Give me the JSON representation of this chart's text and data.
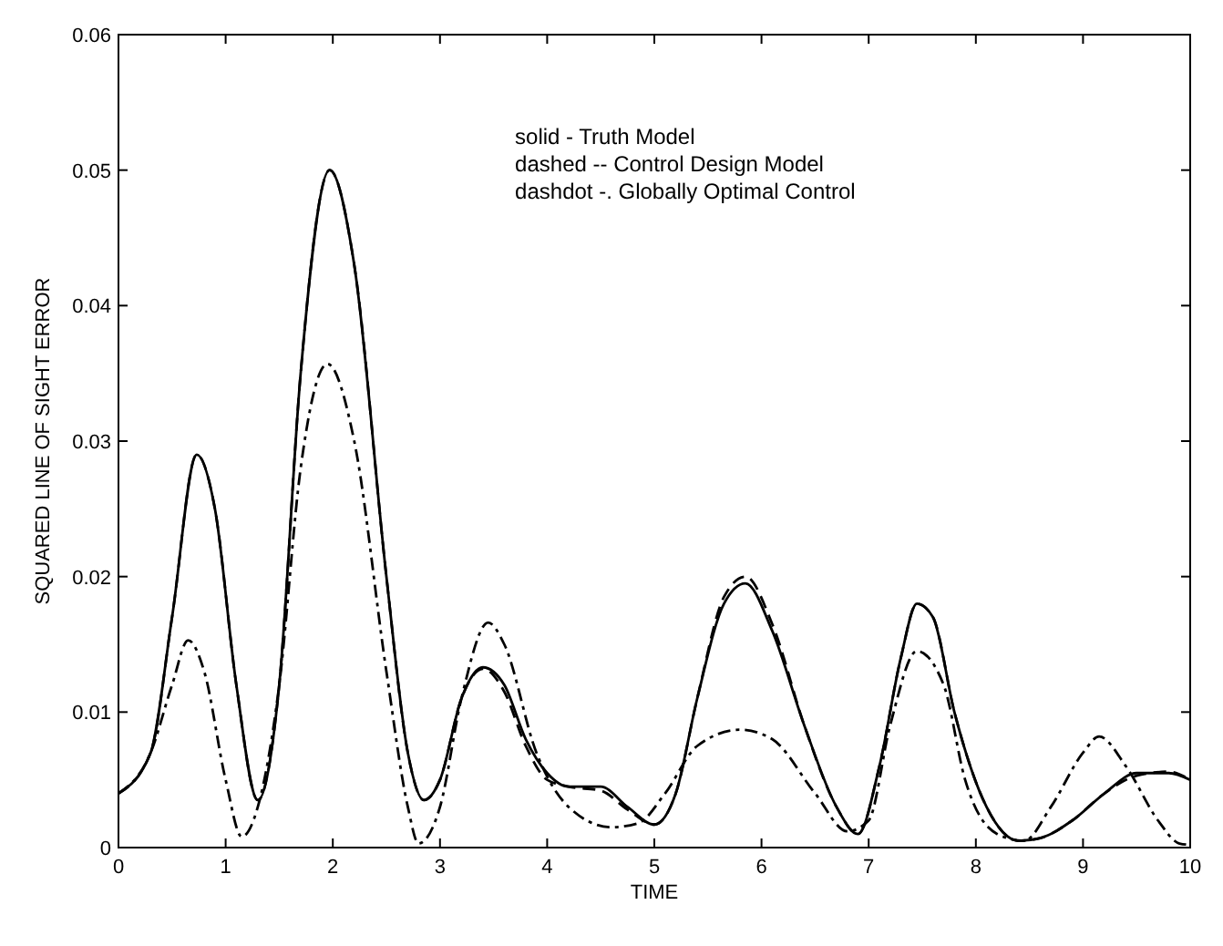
{
  "chart_data": {
    "type": "line",
    "xlabel": "TIME",
    "ylabel": "SQUARED LINE OF SIGHT ERROR",
    "xlim": [
      0,
      10
    ],
    "ylim": [
      0,
      0.06
    ],
    "xticks": [
      0,
      1,
      2,
      3,
      4,
      5,
      6,
      7,
      8,
      9,
      10
    ],
    "yticks": [
      0,
      0.01,
      0.02,
      0.03,
      0.04,
      0.05,
      0.06
    ],
    "grid": false,
    "marker": "none",
    "annotations": [
      "solid - Truth Model",
      "dashed -- Control Design Model",
      "dashdot -. Globally Optimal Control"
    ],
    "series": [
      {
        "color": "#000000",
        "line_style": "solid",
        "x": [
          0,
          0.3,
          0.5,
          0.73,
          0.9,
          1.1,
          1.3,
          1.5,
          1.7,
          1.97,
          2.2,
          2.5,
          2.7,
          2.85,
          3.0,
          3.2,
          3.4,
          3.6,
          3.8,
          4.0,
          4.2,
          4.5,
          4.75,
          5.0,
          5.2,
          5.4,
          5.65,
          5.85,
          6.1,
          6.4,
          6.7,
          6.9,
          7.1,
          7.3,
          7.45,
          7.6,
          7.8,
          8.1,
          8.4,
          8.6,
          8.9,
          9.2,
          9.5,
          9.8,
          10
        ],
        "values": [
          0.004,
          0.007,
          0.017,
          0.029,
          0.025,
          0.012,
          0.0035,
          0.012,
          0.035,
          0.05,
          0.043,
          0.02,
          0.007,
          0.0035,
          0.005,
          0.011,
          0.0133,
          0.012,
          0.008,
          0.0055,
          0.0045,
          0.0045,
          0.003,
          0.0017,
          0.004,
          0.011,
          0.018,
          0.0195,
          0.016,
          0.009,
          0.003,
          0.001,
          0.006,
          0.014,
          0.018,
          0.017,
          0.01,
          0.003,
          0.0005,
          0.0007,
          0.002,
          0.004,
          0.0055,
          0.0055,
          0.005
        ]
      },
      {
        "color": "#000000",
        "line_style": "dashed",
        "x": [
          0,
          0.3,
          0.5,
          0.73,
          0.9,
          1.1,
          1.3,
          1.5,
          1.7,
          1.97,
          2.2,
          2.5,
          2.7,
          2.85,
          3.0,
          3.2,
          3.4,
          3.6,
          3.8,
          4.0,
          4.2,
          4.5,
          4.75,
          5.0,
          5.2,
          5.4,
          5.65,
          5.85,
          6.1,
          6.4,
          6.7,
          6.9,
          7.1,
          7.3,
          7.45,
          7.6,
          7.8,
          8.1,
          8.4,
          8.6,
          8.9,
          9.2,
          9.5,
          9.8,
          10
        ],
        "values": [
          0.004,
          0.007,
          0.017,
          0.029,
          0.025,
          0.012,
          0.0035,
          0.012,
          0.035,
          0.05,
          0.043,
          0.02,
          0.007,
          0.0035,
          0.005,
          0.011,
          0.0132,
          0.0115,
          0.0075,
          0.005,
          0.0045,
          0.0042,
          0.0028,
          0.0017,
          0.004,
          0.011,
          0.0185,
          0.02,
          0.0165,
          0.009,
          0.003,
          0.001,
          0.006,
          0.014,
          0.018,
          0.017,
          0.01,
          0.003,
          0.0005,
          0.0007,
          0.002,
          0.004,
          0.0053,
          0.0056,
          0.005
        ]
      },
      {
        "color": "#000000",
        "line_style": "dashdot",
        "x": [
          0,
          0.3,
          0.5,
          0.65,
          0.8,
          1.0,
          1.15,
          1.3,
          1.5,
          1.7,
          1.95,
          2.2,
          2.5,
          2.7,
          2.8,
          3.0,
          3.2,
          3.45,
          3.6,
          3.9,
          4.2,
          4.6,
          4.85,
          5.1,
          5.4,
          5.8,
          6.1,
          6.5,
          6.8,
          7.0,
          7.2,
          7.45,
          7.7,
          7.9,
          8.2,
          8.45,
          8.7,
          9.0,
          9.15,
          9.4,
          9.7,
          9.9,
          10
        ],
        "values": [
          0.004,
          0.007,
          0.012,
          0.0153,
          0.013,
          0.005,
          0.0008,
          0.003,
          0.012,
          0.028,
          0.0357,
          0.03,
          0.013,
          0.003,
          0.0003,
          0.003,
          0.011,
          0.0166,
          0.015,
          0.007,
          0.003,
          0.0015,
          0.0018,
          0.004,
          0.0075,
          0.0087,
          0.008,
          0.004,
          0.0012,
          0.002,
          0.009,
          0.0145,
          0.012,
          0.005,
          0.001,
          0.0005,
          0.003,
          0.007,
          0.0082,
          0.006,
          0.002,
          0.0003,
          0.0002
        ]
      }
    ]
  }
}
